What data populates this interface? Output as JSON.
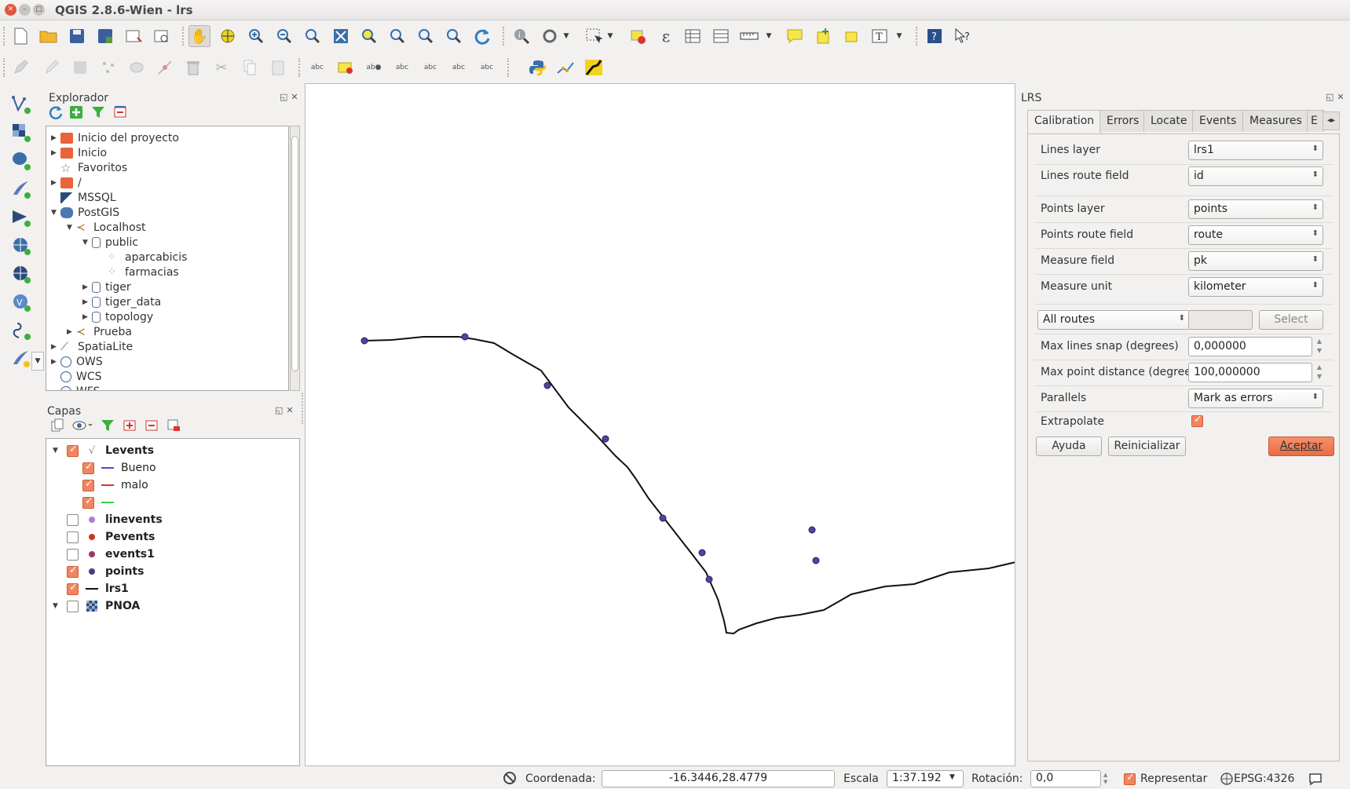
{
  "window": {
    "title": "QGIS 2.8.6-Wien - lrs"
  },
  "browser_panel": {
    "title": "Explorador",
    "items": [
      {
        "label": "Inicio del proyecto",
        "depth": 0,
        "expander": "collapsed",
        "icon": "folder-icon"
      },
      {
        "label": "Inicio",
        "depth": 0,
        "expander": "collapsed",
        "icon": "folder-icon"
      },
      {
        "label": "Favoritos",
        "depth": 0,
        "expander": "none",
        "icon": "star-icon"
      },
      {
        "label": "/",
        "depth": 0,
        "expander": "collapsed",
        "icon": "folder-icon"
      },
      {
        "label": "MSSQL",
        "depth": 0,
        "expander": "none",
        "icon": "mssql-icon"
      },
      {
        "label": "PostGIS",
        "depth": 0,
        "expander": "expanded",
        "icon": "elephant-icon"
      },
      {
        "label": "Localhost",
        "depth": 1,
        "expander": "expanded",
        "icon": "connection-icon"
      },
      {
        "label": "public",
        "depth": 2,
        "expander": "expanded",
        "icon": "database-icon"
      },
      {
        "label": "aparcabicis",
        "depth": 3,
        "expander": "none",
        "icon": "point-layer-icon"
      },
      {
        "label": "farmacias",
        "depth": 3,
        "expander": "none",
        "icon": "point-layer-icon"
      },
      {
        "label": "tiger",
        "depth": 2,
        "expander": "collapsed",
        "icon": "database-icon"
      },
      {
        "label": "tiger_data",
        "depth": 2,
        "expander": "collapsed",
        "icon": "database-icon"
      },
      {
        "label": "topology",
        "depth": 2,
        "expander": "collapsed",
        "icon": "database-icon"
      },
      {
        "label": "Prueba",
        "depth": 1,
        "expander": "collapsed",
        "icon": "connection-icon"
      },
      {
        "label": "SpatiaLite",
        "depth": 0,
        "expander": "collapsed",
        "icon": "feather-icon"
      },
      {
        "label": "OWS",
        "depth": 0,
        "expander": "collapsed",
        "icon": "globe-icon"
      },
      {
        "label": "WCS",
        "depth": 0,
        "expander": "none",
        "icon": "globe-icon"
      },
      {
        "label": "WFS",
        "depth": 0,
        "expander": "none",
        "icon": "globe-icon"
      }
    ]
  },
  "layers_panel": {
    "title": "Capas",
    "items": [
      {
        "label": "Levents",
        "bold": true,
        "checked": true,
        "depth": 0,
        "expander": "expanded",
        "symbol": "line-layer",
        "color": ""
      },
      {
        "label": "Bueno",
        "bold": false,
        "checked": true,
        "depth": 1,
        "expander": "none",
        "symbol": "line",
        "color": "#4a4ad8"
      },
      {
        "label": "malo",
        "bold": false,
        "checked": true,
        "depth": 1,
        "expander": "none",
        "symbol": "line",
        "color": "#e03030"
      },
      {
        "label": "",
        "bold": false,
        "checked": true,
        "depth": 1,
        "expander": "none",
        "symbol": "line",
        "color": "#3ad23a"
      },
      {
        "label": "linevents",
        "bold": true,
        "checked": false,
        "depth": 0,
        "expander": "none",
        "symbol": "dot",
        "color": "#b07ad8"
      },
      {
        "label": "Pevents",
        "bold": true,
        "checked": false,
        "depth": 0,
        "expander": "none",
        "symbol": "dot",
        "color": "#c83820"
      },
      {
        "label": "events1",
        "bold": true,
        "checked": false,
        "depth": 0,
        "expander": "none",
        "symbol": "dot",
        "color": "#9a3a6a"
      },
      {
        "label": "points",
        "bold": true,
        "checked": true,
        "depth": 0,
        "expander": "none",
        "symbol": "dot",
        "color": "#4a3a8a"
      },
      {
        "label": "lrs1",
        "bold": true,
        "checked": true,
        "depth": 0,
        "expander": "none",
        "symbol": "line",
        "color": "#111111"
      },
      {
        "label": "PNOA",
        "bold": true,
        "checked": false,
        "depth": 0,
        "expander": "expanded",
        "symbol": "raster",
        "color": "#2a4a7a"
      }
    ]
  },
  "lrs_panel": {
    "title": "LRS",
    "tabs": [
      "Calibration",
      "Errors",
      "Locate",
      "Events",
      "Measures",
      "E"
    ],
    "active_tab": "Calibration",
    "fields": {
      "lines_layer": {
        "label": "Lines layer",
        "value": "lrs1"
      },
      "lines_route_field": {
        "label": "Lines route field",
        "value": "id"
      },
      "points_layer": {
        "label": "Points layer",
        "value": "points"
      },
      "points_route_field": {
        "label": "Points route field",
        "value": "route"
      },
      "measure_field": {
        "label": "Measure field",
        "value": "pk"
      },
      "measure_unit": {
        "label": "Measure unit",
        "value": "kilometer"
      },
      "routes": {
        "value": "All routes",
        "select_label": "Select"
      },
      "max_lines_snap": {
        "label": "Max lines snap (degrees)",
        "value": "0,000000"
      },
      "max_point_distance": {
        "label": "Max point distance (degrees)",
        "value": "100,000000"
      },
      "parallels": {
        "label": "Parallels",
        "value": "Mark as errors"
      },
      "extrapolate": {
        "label": "Extrapolate",
        "checked": true
      }
    },
    "buttons": {
      "help": "Ayuda",
      "reset": "Reinicializar",
      "accept": "Aceptar"
    }
  },
  "status_bar": {
    "coordinate_label": "Coordenada:",
    "coordinate_value": "-16.3446,28.4779",
    "scale_label": "Escala",
    "scale_value": "1:37.192",
    "rotation_label": "Rotación:",
    "rotation_value": "0,0",
    "render_label": "Representar",
    "render_checked": true,
    "crs": "EPSG:4326"
  },
  "colors": {
    "accent": "#eb6c43",
    "route_line": "#111111",
    "calibration_point": "#5b3fa0"
  }
}
